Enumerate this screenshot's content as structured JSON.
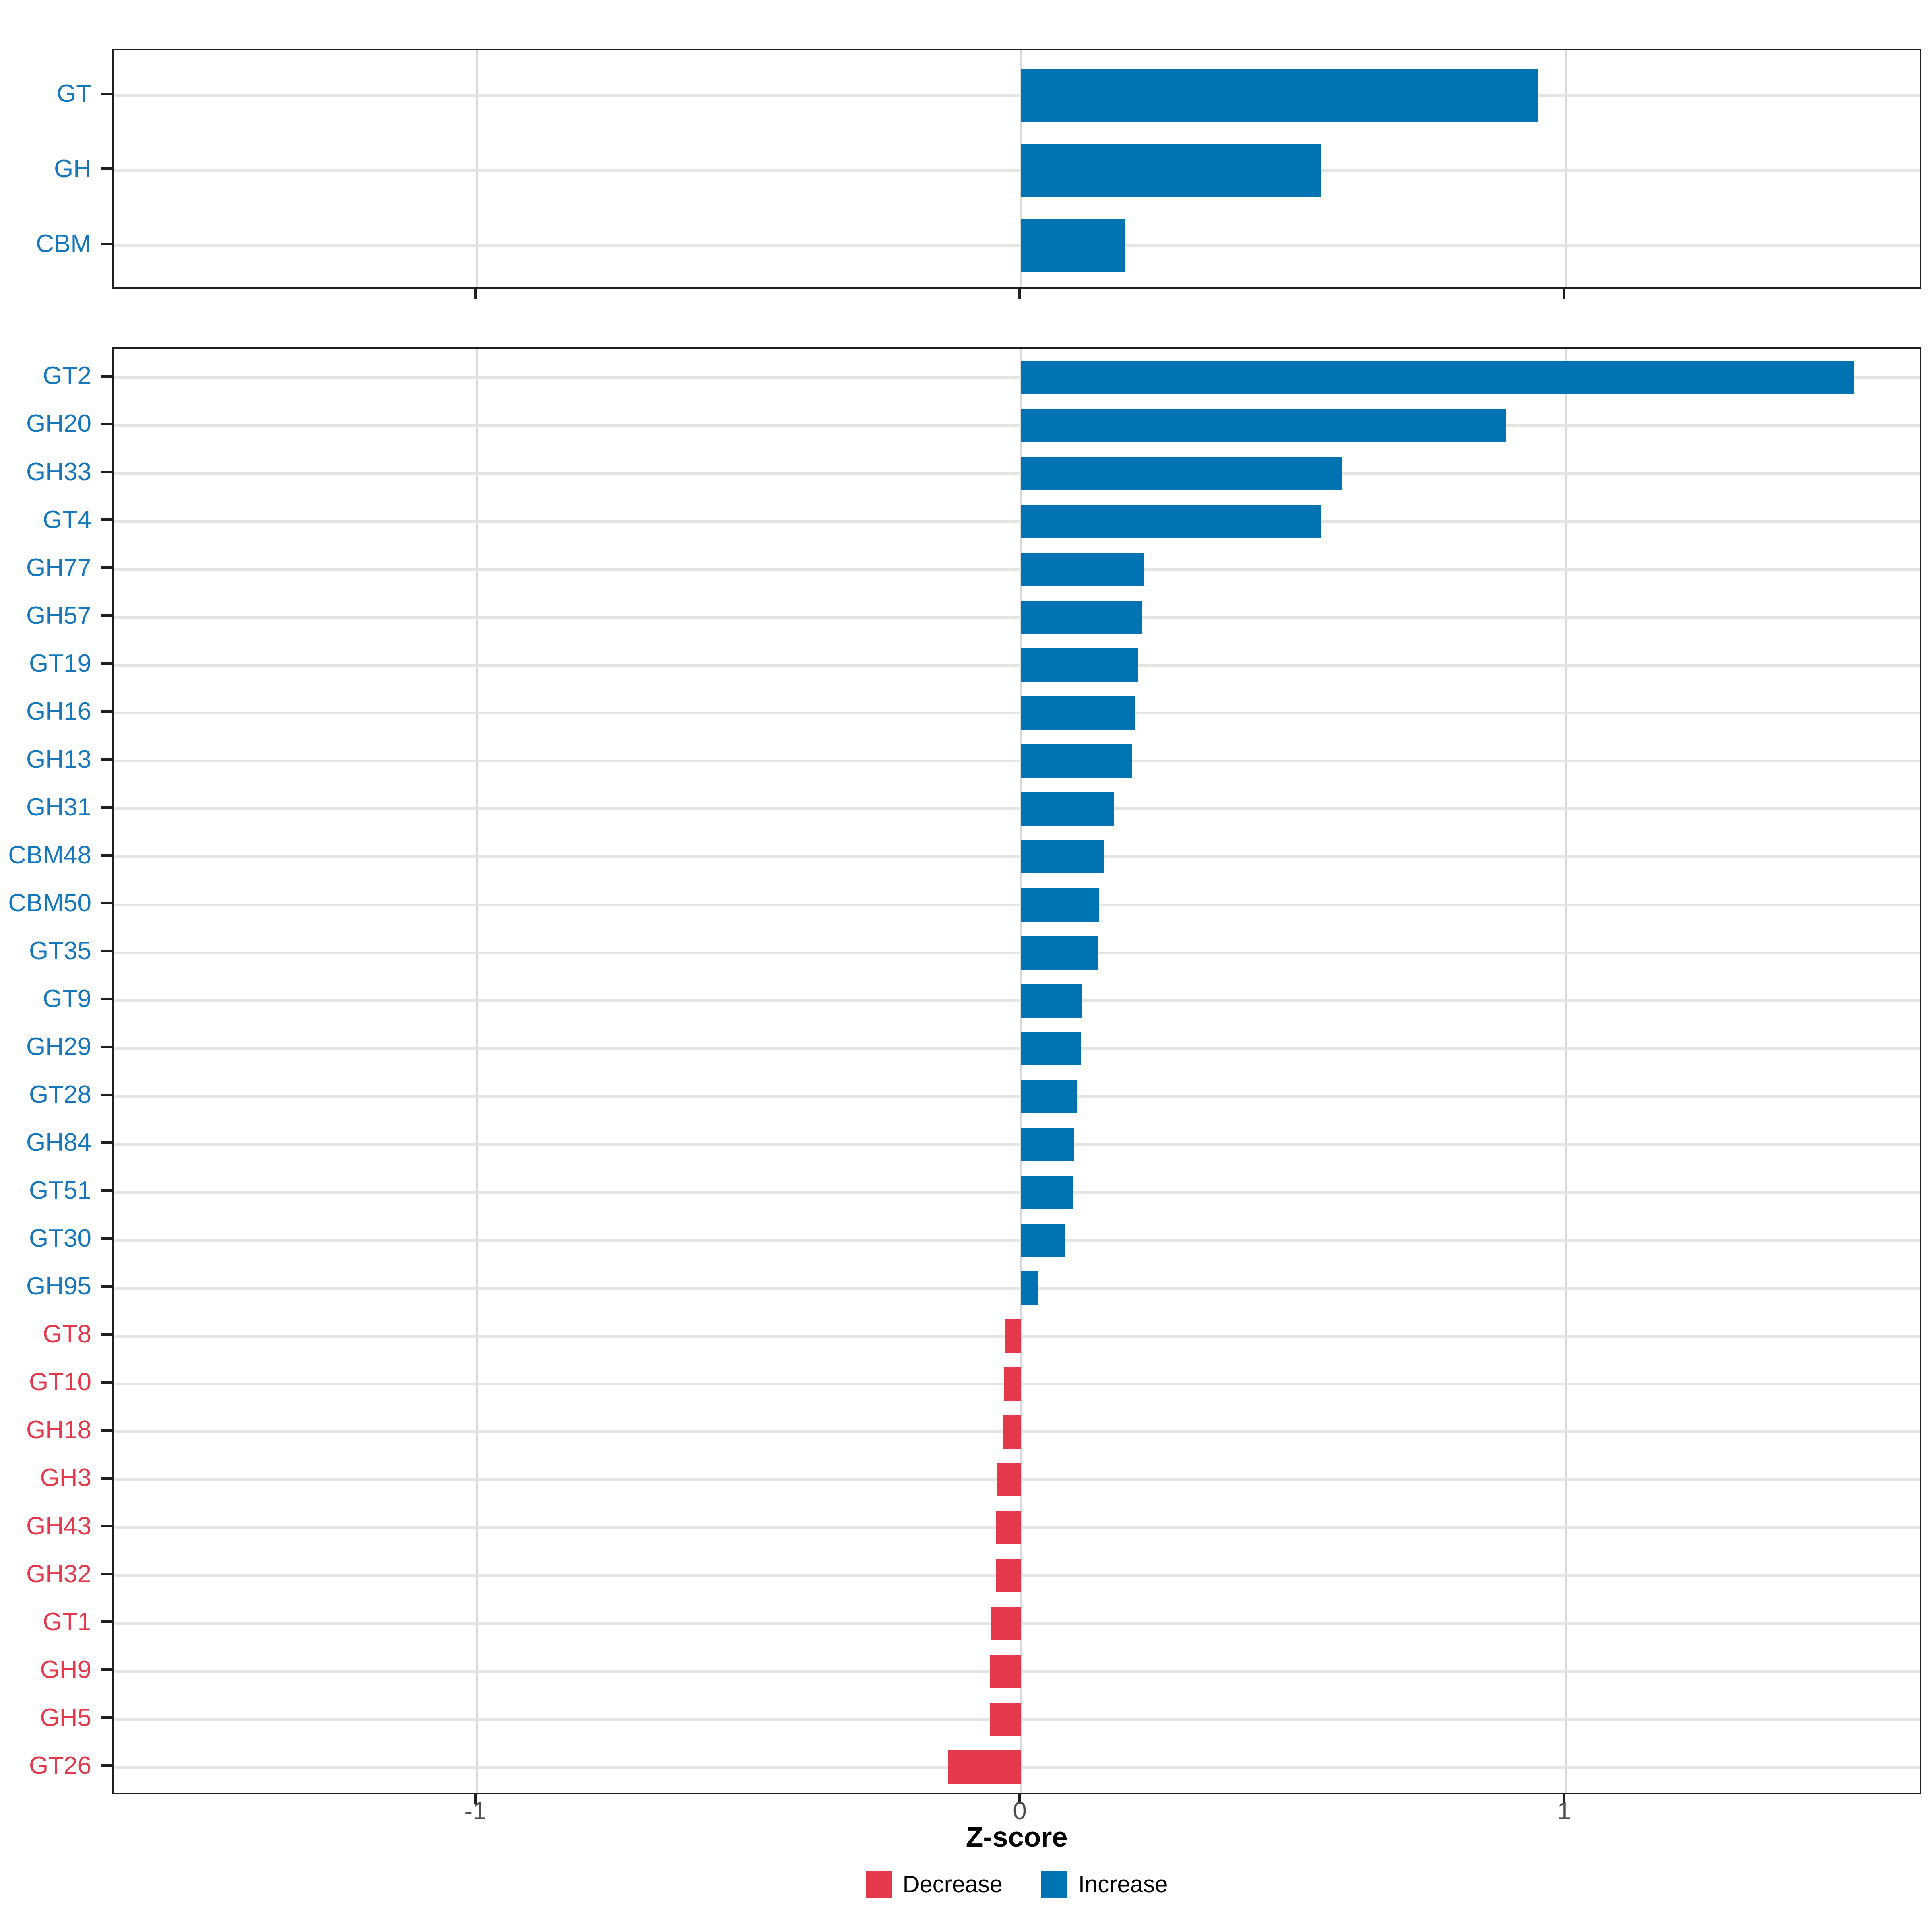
{
  "chart_data": {
    "type": "bar",
    "orientation": "horizontal",
    "xlabel": "Z-score",
    "ylabel": "",
    "xlim": [
      -1.667,
      1.656
    ],
    "x_ticks": [
      -1,
      0,
      1
    ],
    "x_tick_labels": [
      "-1",
      "0",
      "1"
    ],
    "grid": true,
    "legend_position": "bottom-center",
    "colors": {
      "increase_bar": "#0074b3",
      "decrease_bar": "#e5394b",
      "increase_label": "#1577bd",
      "decrease_label": "#e5394b",
      "tick_label": "#4d4d4d",
      "gridline": "#e0e0e0",
      "panel_border": "#1f1f1f"
    },
    "legend": [
      {
        "label": "Decrease",
        "color": "#e5394b"
      },
      {
        "label": "Increase",
        "color": "#0074b3"
      }
    ],
    "panels": [
      {
        "name": "cazyme-class-panel",
        "rows": [
          {
            "label": "GT",
            "value": 0.95,
            "direction": "increase"
          },
          {
            "label": "GH",
            "value": 0.55,
            "direction": "increase"
          },
          {
            "label": "CBM",
            "value": 0.19,
            "direction": "increase"
          }
        ]
      },
      {
        "name": "cazyme-family-panel",
        "rows": [
          {
            "label": "GT2",
            "value": 1.53,
            "direction": "increase"
          },
          {
            "label": "GH20",
            "value": 0.89,
            "direction": "increase"
          },
          {
            "label": "GH33",
            "value": 0.59,
            "direction": "increase"
          },
          {
            "label": "GT4",
            "value": 0.55,
            "direction": "increase"
          },
          {
            "label": "GH77",
            "value": 0.225,
            "direction": "increase"
          },
          {
            "label": "GH57",
            "value": 0.222,
            "direction": "increase"
          },
          {
            "label": "GT19",
            "value": 0.215,
            "direction": "increase"
          },
          {
            "label": "GH16",
            "value": 0.21,
            "direction": "increase"
          },
          {
            "label": "GH13",
            "value": 0.204,
            "direction": "increase"
          },
          {
            "label": "GH31",
            "value": 0.17,
            "direction": "increase"
          },
          {
            "label": "CBM48",
            "value": 0.152,
            "direction": "increase"
          },
          {
            "label": "CBM50",
            "value": 0.143,
            "direction": "increase"
          },
          {
            "label": "GT35",
            "value": 0.14,
            "direction": "increase"
          },
          {
            "label": "GT9",
            "value": 0.112,
            "direction": "increase"
          },
          {
            "label": "GH29",
            "value": 0.109,
            "direction": "increase"
          },
          {
            "label": "GT28",
            "value": 0.103,
            "direction": "increase"
          },
          {
            "label": "GH84",
            "value": 0.097,
            "direction": "increase"
          },
          {
            "label": "GT51",
            "value": 0.094,
            "direction": "increase"
          },
          {
            "label": "GT30",
            "value": 0.08,
            "direction": "increase"
          },
          {
            "label": "GH95",
            "value": 0.031,
            "direction": "increase"
          },
          {
            "label": "GT8",
            "value": -0.029,
            "direction": "decrease"
          },
          {
            "label": "GT10",
            "value": -0.032,
            "direction": "decrease"
          },
          {
            "label": "GH18",
            "value": -0.033,
            "direction": "decrease"
          },
          {
            "label": "GH3",
            "value": -0.044,
            "direction": "decrease"
          },
          {
            "label": "GH43",
            "value": -0.046,
            "direction": "decrease"
          },
          {
            "label": "GH32",
            "value": -0.047,
            "direction": "decrease"
          },
          {
            "label": "GT1",
            "value": -0.056,
            "direction": "decrease"
          },
          {
            "label": "GH9",
            "value": -0.057,
            "direction": "decrease"
          },
          {
            "label": "GH5",
            "value": -0.058,
            "direction": "decrease"
          },
          {
            "label": "GT26",
            "value": -0.135,
            "direction": "decrease"
          }
        ]
      }
    ]
  }
}
